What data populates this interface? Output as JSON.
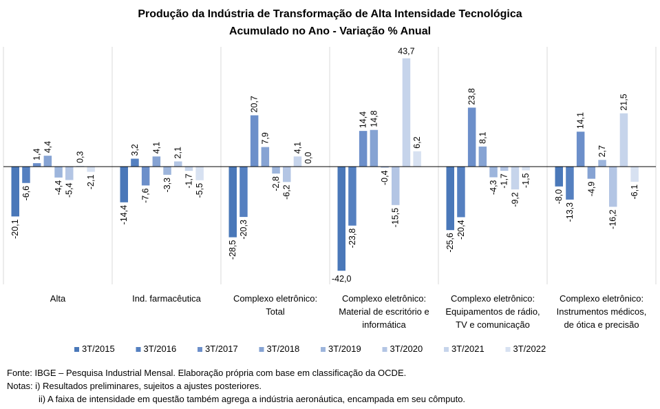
{
  "title": "Produção da Indústria de Transformação de Alta Intensidade Tecnológica",
  "subtitle": "Acumulado no Ano - Variação % Anual",
  "chart_data": {
    "type": "bar",
    "title": "Produção da Indústria de Transformação de Alta Intensidade Tecnológica",
    "subtitle": "Acumulado no Ano - Variação % Anual",
    "categories": [
      [
        "Alta"
      ],
      [
        "Ind. farmacêutica"
      ],
      [
        "Complexo eletrônico:",
        "Total"
      ],
      [
        "Complexo eletrônico:",
        "Material de escritório e",
        "informática"
      ],
      [
        "Complexo eletrônico:",
        "Equipamentos de rádio,",
        "TV e comunicação"
      ],
      [
        "Complexo eletrônico:",
        "Instrumentos médicos,",
        "de ótica e precisão"
      ]
    ],
    "series": [
      {
        "name": "3T/2015",
        "color": "#4a78b9",
        "values": [
          -20.1,
          -14.4,
          -28.5,
          -42.0,
          -25.6,
          -8.0
        ]
      },
      {
        "name": "3T/2016",
        "color": "#5580c0",
        "values": [
          -6.6,
          3.2,
          -20.3,
          -23.8,
          -20.4,
          -13.3
        ]
      },
      {
        "name": "3T/2017",
        "color": "#6c8fca",
        "values": [
          1.4,
          -7.6,
          20.7,
          14.4,
          23.8,
          14.1
        ]
      },
      {
        "name": "3T/2018",
        "color": "#86a3d3",
        "values": [
          4.4,
          4.1,
          7.9,
          14.8,
          8.1,
          -4.9
        ]
      },
      {
        "name": "3T/2019",
        "color": "#9db5dc",
        "values": [
          -4.4,
          -3.3,
          -2.8,
          -0.4,
          -4.3,
          2.7
        ]
      },
      {
        "name": "3T/2020",
        "color": "#b3c5e4",
        "values": [
          -5.4,
          2.1,
          -6.2,
          -15.5,
          -1.7,
          -16.2
        ]
      },
      {
        "name": "3T/2021",
        "color": "#c6d4eb",
        "values": [
          0.3,
          -1.7,
          4.1,
          43.7,
          -9.2,
          21.5
        ]
      },
      {
        "name": "3T/2022",
        "color": "#d7e1f1",
        "values": [
          -2.1,
          -5.5,
          0.0,
          6.2,
          -1.5,
          -6.1
        ]
      }
    ],
    "value_labels": [
      [
        "-20,1",
        "-14,4",
        "-28,5",
        "-42,0",
        "-25,6",
        "-8,0"
      ],
      [
        "-6,6",
        "3,2",
        "-20,3",
        "-23,8",
        "-20,4",
        "-13,3"
      ],
      [
        "1,4",
        "-7,6",
        "20,7",
        "14,4",
        "23,8",
        "14,1"
      ],
      [
        "4,4",
        "4,1",
        "7,9",
        "14,8",
        "8,1",
        "-4,9"
      ],
      [
        "-4,4",
        "-3,3",
        "-2,8",
        "-0,4",
        "-4,3",
        "2,7"
      ],
      [
        "-5,4",
        "2,1",
        "-6,2",
        "-15,5",
        "-1,7",
        "-16,2"
      ],
      [
        "0,3",
        "-1,7",
        "4,1",
        "43,7",
        "-9,2",
        "21,5"
      ],
      [
        "-2,1",
        "-5,5",
        "0,0",
        "6,2",
        "-1,5",
        "-6,1"
      ]
    ],
    "ylim": [
      -42.0,
      43.7
    ],
    "xlabel": "",
    "ylabel": "",
    "grid": false,
    "legend": "bottom"
  },
  "notes": {
    "source": "Fonte: IBGE – Pesquisa Industrial Mensal. Elaboração própria com base em classificação da OCDE.",
    "note1": "Notas: i) Resultados preliminares, sujeitos a ajustes posteriores.",
    "note2": "ii) A faixa de intensidade em questão também agrega a indústria aeronáutica, encampada em seu cômputo."
  }
}
